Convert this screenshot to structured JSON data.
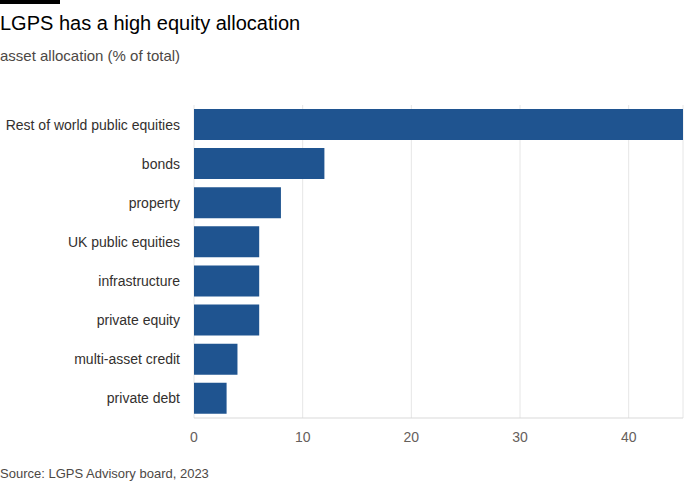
{
  "chart_data": {
    "type": "bar",
    "title": "LGPS has a high equity allocation",
    "subtitle": "asset allocation (% of total)",
    "source": "Source: LGPS Advisory board, 2023",
    "orientation": "horizontal",
    "categories": [
      "Rest of world public equities",
      "bonds",
      "property",
      "UK public equities",
      "infrastructure",
      "private equity",
      "multi-asset credit",
      "private debt"
    ],
    "values": [
      45,
      12,
      8,
      6,
      6,
      6,
      4,
      3
    ],
    "color": "#1f5490",
    "xlim": [
      0,
      45
    ],
    "xticks": [
      0,
      10,
      20,
      30,
      40
    ],
    "grid": true
  }
}
